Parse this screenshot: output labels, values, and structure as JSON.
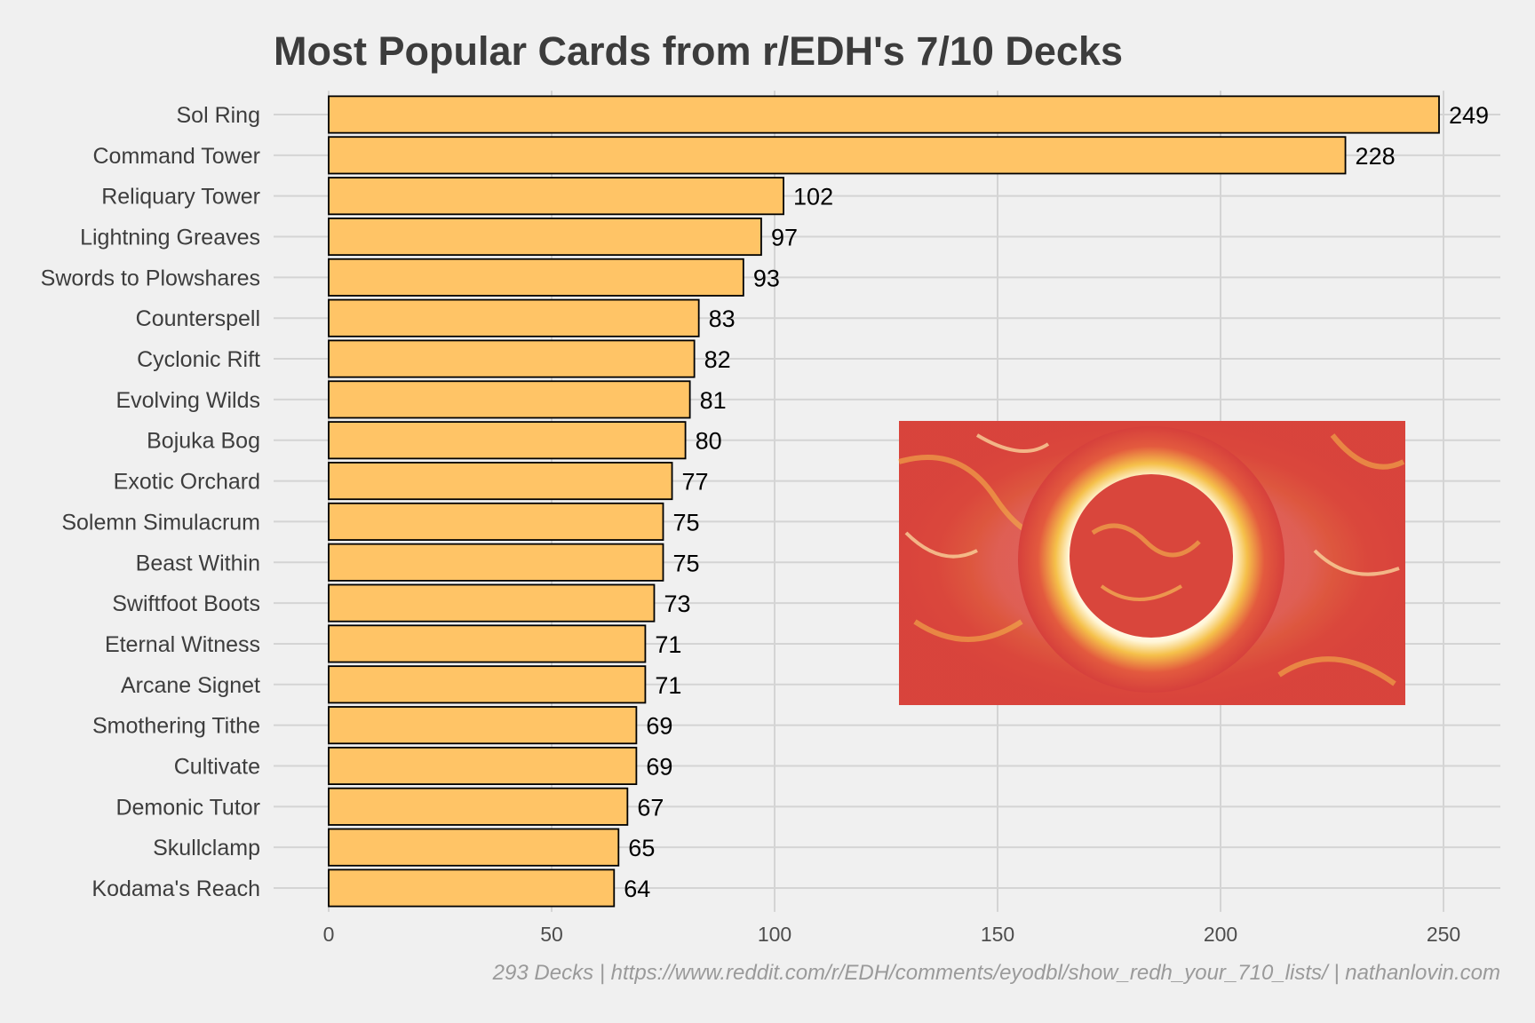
{
  "chart_data": {
    "type": "bar",
    "orientation": "horizontal",
    "title": "Most Popular Cards from r/EDH's 7/10 Decks",
    "caption": "293 Decks | https://www.reddit.com/r/EDH/comments/eyodbl/show_redh_your_710_lists/ | nathanlovin.com",
    "categories": [
      "Sol Ring",
      "Command Tower",
      "Reliquary Tower",
      "Lightning Greaves",
      "Swords to Plowshares",
      "Counterspell",
      "Cyclonic Rift",
      "Evolving Wilds",
      "Bojuka Bog",
      "Exotic Orchard",
      "Solemn Simulacrum",
      "Beast Within",
      "Swiftfoot Boots",
      "Eternal Witness",
      "Arcane Signet",
      "Smothering Tithe",
      "Cultivate",
      "Demonic Tutor",
      "Skullclamp",
      "Kodama's Reach"
    ],
    "values": [
      249,
      228,
      102,
      97,
      93,
      83,
      82,
      81,
      80,
      77,
      75,
      75,
      73,
      71,
      71,
      69,
      69,
      67,
      65,
      64
    ],
    "x_ticks": [
      0,
      50,
      100,
      150,
      200,
      250
    ],
    "xlim": [
      0,
      256
    ],
    "grid": true,
    "bar_color": "#ffc466",
    "bar_outline": "#000000",
    "inset_image": "card-art-sol-ring"
  }
}
